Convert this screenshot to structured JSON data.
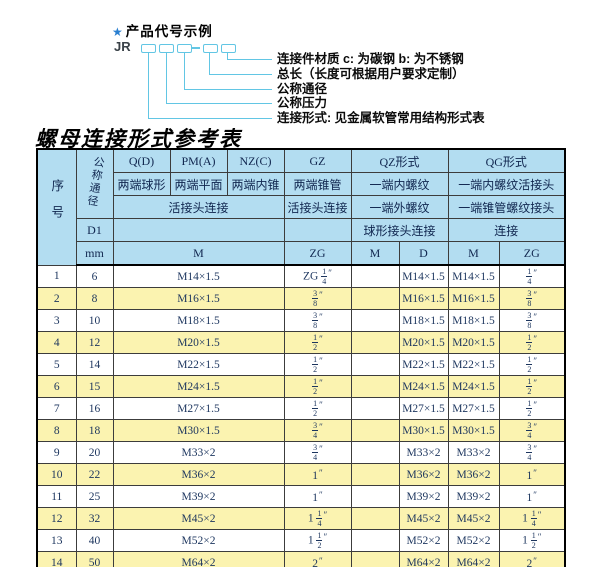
{
  "diagram": {
    "title_star": "★",
    "title": "产品代号示例",
    "code_prefix": "JR",
    "labels": [
      "连接件材质 c: 为碳钢 b: 为不锈钢",
      "总长（长度可根据用户要求定制）",
      "公称通径",
      "公称压力",
      "连接形式: 见金属软管常用结构形式表"
    ]
  },
  "table": {
    "title": "螺母连接形式参考表",
    "header": {
      "col_no": "序号",
      "col_dn": "公称通径",
      "d1": "D1",
      "mm": "mm",
      "q_d": "Q(D)",
      "pm_a": "PM(A)",
      "nz_c": "NZ(C)",
      "gz": "GZ",
      "qz": "QZ形式",
      "qg": "QG形式",
      "q_d_sub": "两端球形",
      "pm_a_sub": "两端平面",
      "nz_c_sub": "两端内锥",
      "gz_sub": "两端锥管",
      "qz_sub": "一端内螺纹",
      "qg_sub": "一端内螺纹活接头",
      "left_conn": "活接头连接",
      "gz_conn": "活接头连接",
      "qz_conn": "一端外螺纹",
      "qg_conn": "一端锥管螺纹接头",
      "qz_conn2": "球形接头连接",
      "qg_conn2": "连接",
      "m_label": "M",
      "zg_label": "ZG",
      "qz_m": "M",
      "qz_d": "D",
      "qg_m": "M",
      "qg_zg": "ZG"
    },
    "rows": [
      [
        "1",
        "6",
        "M14×1.5",
        "ZG 1/4\"",
        "",
        "M14×1.5",
        "M14×1.5",
        "1/4\""
      ],
      [
        "2",
        "8",
        "M16×1.5",
        "3/8\"",
        "",
        "M16×1.5",
        "M16×1.5",
        "3/8\""
      ],
      [
        "3",
        "10",
        "M18×1.5",
        "3/8\"",
        "",
        "M18×1.5",
        "M18×1.5",
        "3/8\""
      ],
      [
        "4",
        "12",
        "M20×1.5",
        "1/2\"",
        "",
        "M20×1.5",
        "M20×1.5",
        "1/2\""
      ],
      [
        "5",
        "14",
        "M22×1.5",
        "1/2\"",
        "",
        "M22×1.5",
        "M22×1.5",
        "1/2\""
      ],
      [
        "6",
        "15",
        "M24×1.5",
        "1/2\"",
        "",
        "M24×1.5",
        "M24×1.5",
        "1/2\""
      ],
      [
        "7",
        "16",
        "M27×1.5",
        "1/2\"",
        "",
        "M27×1.5",
        "M27×1.5",
        "1/2\""
      ],
      [
        "8",
        "18",
        "M30×1.5",
        "3/4\"",
        "",
        "M30×1.5",
        "M30×1.5",
        "3/4\""
      ],
      [
        "9",
        "20",
        "M33×2",
        "3/4\"",
        "",
        "M33×2",
        "M33×2",
        "3/4\""
      ],
      [
        "10",
        "22",
        "M36×2",
        "1\"",
        "",
        "M36×2",
        "M36×2",
        "1\""
      ],
      [
        "11",
        "25",
        "M39×2",
        "1\"",
        "",
        "M39×2",
        "M39×2",
        "1\""
      ],
      [
        "12",
        "32",
        "M45×2",
        "1 1/4\"",
        "",
        "M45×2",
        "M45×2",
        "1 1/4\""
      ],
      [
        "13",
        "40",
        "M52×2",
        "1 1/2\"",
        "",
        "M52×2",
        "M52×2",
        "1 1/2\""
      ],
      [
        "14",
        "50",
        "M64×2",
        "2\"",
        "",
        "M64×2",
        "M64×2",
        "2\""
      ]
    ]
  },
  "colors": {
    "header_bg": "#b3ddf1",
    "row_alt_bg": "#fbf3b0",
    "text_navy": "#1c355e",
    "diagram_line": "#62c6e4",
    "star_blue": "#2a7fd0"
  }
}
